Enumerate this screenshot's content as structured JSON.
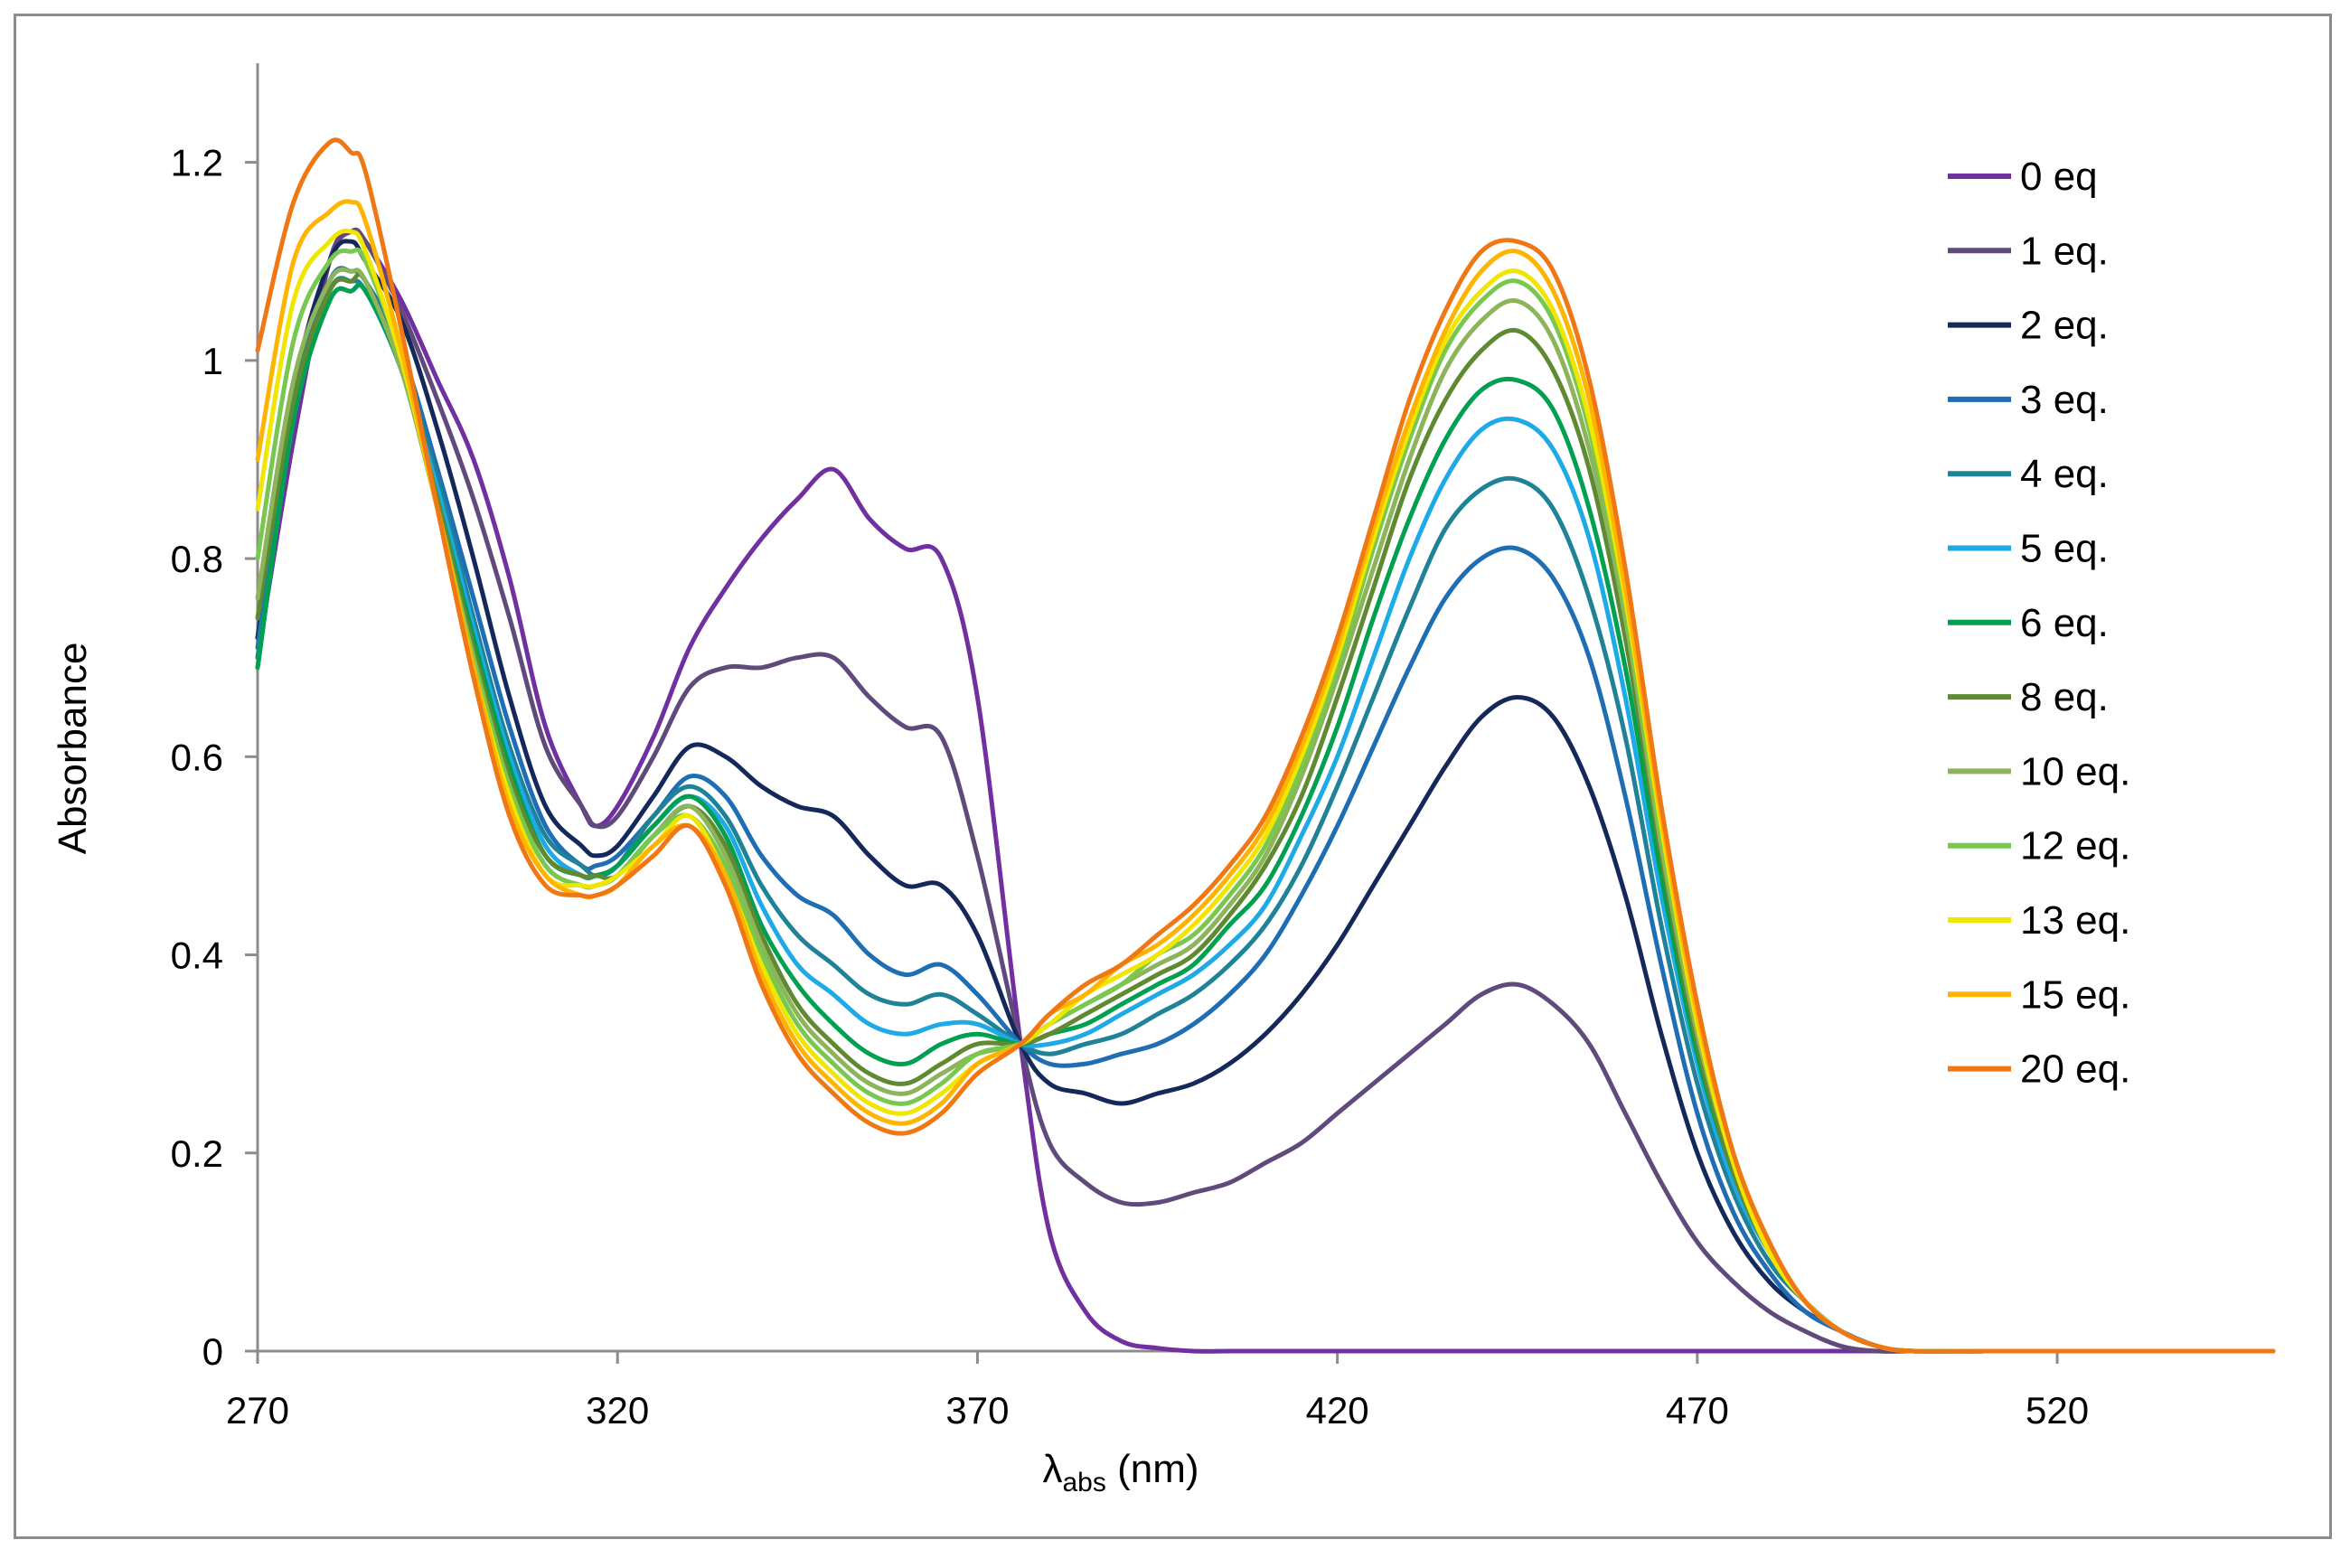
{
  "chart_data": {
    "type": "line",
    "title": "",
    "xlabel": "λabs (nm)",
    "xlabel_main": "λ",
    "xlabel_sub": "abs",
    "xlabel_unit": " (nm)",
    "ylabel": "Absorbance",
    "xlim": [
      270,
      550
    ],
    "ylim": [
      0,
      1.3
    ],
    "xticks": [
      270,
      320,
      370,
      420,
      470,
      520
    ],
    "xtick_labels": [
      "270",
      "320",
      "370",
      "420",
      "470",
      "520"
    ],
    "yticks": [
      0,
      0.2,
      0.4,
      0.6,
      0.8,
      1,
      1.2
    ],
    "ytick_labels": [
      "0",
      "0.2",
      "0.4",
      "0.6",
      "0.8",
      "1",
      "1.2"
    ],
    "grid": false,
    "legend_position": "top-right",
    "x": [
      270,
      275,
      280,
      283,
      285,
      290,
      295,
      300,
      305,
      310,
      315,
      317,
      320,
      325,
      330,
      335,
      340,
      345,
      350,
      355,
      360,
      365,
      370,
      376,
      380,
      385,
      390,
      395,
      400,
      405,
      410,
      415,
      420,
      425,
      430,
      435,
      440,
      445,
      450,
      455,
      460,
      465,
      470,
      475,
      480,
      485,
      490,
      495,
      500,
      510,
      520,
      550
    ],
    "series": [
      {
        "name": "0 eq",
        "color": "#7030a0",
        "values": [
          0.7,
          0.92,
          1.1,
          1.13,
          1.12,
          1.06,
          0.98,
          0.9,
          0.78,
          0.63,
          0.55,
          0.53,
          0.55,
          0.62,
          0.71,
          0.77,
          0.82,
          0.86,
          0.89,
          0.84,
          0.81,
          0.8,
          0.66,
          0.31,
          0.12,
          0.04,
          0.01,
          0.003,
          0,
          0,
          0,
          0,
          0,
          0,
          0,
          0,
          0,
          0,
          0,
          0,
          0,
          0,
          0,
          0,
          0,
          0,
          0,
          0,
          0,
          0,
          0,
          0
        ]
      },
      {
        "name": "1 eq.",
        "color": "#604a7b",
        "values": [
          0.72,
          0.95,
          1.1,
          1.13,
          1.12,
          1.05,
          0.96,
          0.86,
          0.74,
          0.61,
          0.55,
          0.53,
          0.54,
          0.6,
          0.67,
          0.69,
          0.69,
          0.7,
          0.7,
          0.66,
          0.63,
          0.62,
          0.5,
          0.31,
          0.21,
          0.17,
          0.15,
          0.15,
          0.16,
          0.17,
          0.19,
          0.21,
          0.24,
          0.27,
          0.3,
          0.33,
          0.36,
          0.37,
          0.35,
          0.31,
          0.24,
          0.17,
          0.11,
          0.07,
          0.04,
          0.02,
          0.005,
          0,
          0,
          0,
          0,
          0
        ]
      },
      {
        "name": "2 eq.",
        "color": "#14285a",
        "values": [
          0.72,
          0.97,
          1.1,
          1.12,
          1.1,
          1.04,
          0.93,
          0.8,
          0.66,
          0.55,
          0.51,
          0.5,
          0.51,
          0.56,
          0.61,
          0.6,
          0.57,
          0.55,
          0.54,
          0.5,
          0.47,
          0.47,
          0.42,
          0.31,
          0.27,
          0.26,
          0.25,
          0.26,
          0.27,
          0.29,
          0.32,
          0.36,
          0.41,
          0.47,
          0.53,
          0.59,
          0.64,
          0.66,
          0.64,
          0.57,
          0.46,
          0.32,
          0.2,
          0.12,
          0.07,
          0.04,
          0.02,
          0.005,
          0,
          0,
          0,
          0
        ]
      },
      {
        "name": "3 eq.",
        "color": "#1f6eb4",
        "values": [
          0.71,
          0.96,
          1.08,
          1.09,
          1.08,
          1.01,
          0.89,
          0.76,
          0.63,
          0.53,
          0.49,
          0.49,
          0.5,
          0.54,
          0.58,
          0.56,
          0.5,
          0.46,
          0.44,
          0.4,
          0.38,
          0.39,
          0.36,
          0.31,
          0.29,
          0.29,
          0.3,
          0.31,
          0.33,
          0.36,
          0.4,
          0.46,
          0.53,
          0.61,
          0.69,
          0.76,
          0.8,
          0.81,
          0.78,
          0.7,
          0.56,
          0.39,
          0.24,
          0.14,
          0.08,
          0.04,
          0.02,
          0.005,
          0,
          0,
          0,
          0
        ]
      },
      {
        "name": "4 eq.",
        "color": "#1f8296",
        "values": [
          0.7,
          0.95,
          1.07,
          1.08,
          1.07,
          1.0,
          0.88,
          0.74,
          0.61,
          0.52,
          0.49,
          0.48,
          0.49,
          0.54,
          0.57,
          0.54,
          0.47,
          0.42,
          0.39,
          0.36,
          0.35,
          0.36,
          0.34,
          0.31,
          0.3,
          0.31,
          0.32,
          0.34,
          0.36,
          0.39,
          0.43,
          0.49,
          0.57,
          0.66,
          0.75,
          0.83,
          0.87,
          0.88,
          0.85,
          0.76,
          0.62,
          0.43,
          0.27,
          0.16,
          0.09,
          0.05,
          0.02,
          0.005,
          0,
          0,
          0,
          0
        ]
      },
      {
        "name": "5 eq.",
        "color": "#1eaae6",
        "values": [
          0.69,
          0.94,
          1.06,
          1.07,
          1.07,
          0.99,
          0.87,
          0.73,
          0.6,
          0.51,
          0.48,
          0.48,
          0.49,
          0.53,
          0.56,
          0.53,
          0.45,
          0.39,
          0.36,
          0.33,
          0.32,
          0.33,
          0.33,
          0.31,
          0.31,
          0.32,
          0.34,
          0.36,
          0.38,
          0.41,
          0.45,
          0.52,
          0.6,
          0.7,
          0.8,
          0.88,
          0.93,
          0.94,
          0.91,
          0.82,
          0.66,
          0.46,
          0.29,
          0.17,
          0.1,
          0.05,
          0.02,
          0.005,
          0,
          0,
          0,
          0
        ]
      },
      {
        "name": "6 eq.",
        "color": "#00a050",
        "values": [
          0.69,
          0.94,
          1.06,
          1.07,
          1.07,
          0.99,
          0.86,
          0.72,
          0.59,
          0.5,
          0.48,
          0.48,
          0.49,
          0.53,
          0.56,
          0.52,
          0.43,
          0.37,
          0.33,
          0.3,
          0.29,
          0.31,
          0.32,
          0.31,
          0.32,
          0.33,
          0.35,
          0.37,
          0.39,
          0.43,
          0.47,
          0.54,
          0.63,
          0.74,
          0.84,
          0.92,
          0.97,
          0.98,
          0.95,
          0.85,
          0.69,
          0.48,
          0.3,
          0.18,
          0.1,
          0.05,
          0.02,
          0.005,
          0,
          0,
          0,
          0
        ]
      },
      {
        "name": "8 eq.",
        "color": "#5f8a32",
        "values": [
          0.74,
          0.96,
          1.07,
          1.08,
          1.08,
          0.99,
          0.86,
          0.71,
          0.58,
          0.5,
          0.48,
          0.48,
          0.48,
          0.52,
          0.55,
          0.51,
          0.42,
          0.35,
          0.31,
          0.28,
          0.27,
          0.29,
          0.31,
          0.31,
          0.32,
          0.34,
          0.36,
          0.38,
          0.4,
          0.44,
          0.49,
          0.56,
          0.66,
          0.77,
          0.88,
          0.96,
          1.01,
          1.03,
          0.99,
          0.89,
          0.72,
          0.5,
          0.31,
          0.18,
          0.1,
          0.05,
          0.02,
          0.005,
          0,
          0,
          0,
          0
        ]
      },
      {
        "name": "10 eq.",
        "color": "#8cb45a",
        "values": [
          0.76,
          0.98,
          1.08,
          1.09,
          1.08,
          0.99,
          0.85,
          0.7,
          0.57,
          0.49,
          0.47,
          0.47,
          0.48,
          0.52,
          0.55,
          0.5,
          0.41,
          0.34,
          0.3,
          0.27,
          0.26,
          0.28,
          0.3,
          0.31,
          0.33,
          0.35,
          0.37,
          0.39,
          0.41,
          0.45,
          0.5,
          0.58,
          0.68,
          0.79,
          0.9,
          0.99,
          1.04,
          1.06,
          1.02,
          0.91,
          0.74,
          0.51,
          0.32,
          0.19,
          0.1,
          0.05,
          0.02,
          0.005,
          0,
          0,
          0,
          0
        ]
      },
      {
        "name": "12 eq.",
        "color": "#78c850",
        "values": [
          0.8,
          1.02,
          1.1,
          1.11,
          1.1,
          1.0,
          0.85,
          0.7,
          0.57,
          0.49,
          0.47,
          0.47,
          0.48,
          0.52,
          0.54,
          0.49,
          0.4,
          0.33,
          0.29,
          0.26,
          0.25,
          0.27,
          0.3,
          0.31,
          0.33,
          0.35,
          0.37,
          0.4,
          0.42,
          0.46,
          0.51,
          0.59,
          0.69,
          0.81,
          0.92,
          1.01,
          1.06,
          1.08,
          1.04,
          0.93,
          0.75,
          0.52,
          0.33,
          0.19,
          0.1,
          0.05,
          0.02,
          0.005,
          0,
          0,
          0,
          0
        ]
      },
      {
        "name": "13 eq.",
        "color": "#f0e600",
        "values": [
          0.85,
          1.06,
          1.12,
          1.13,
          1.11,
          1.0,
          0.85,
          0.69,
          0.56,
          0.48,
          0.47,
          0.47,
          0.48,
          0.51,
          0.54,
          0.48,
          0.39,
          0.32,
          0.28,
          0.25,
          0.24,
          0.26,
          0.29,
          0.31,
          0.33,
          0.36,
          0.38,
          0.4,
          0.43,
          0.47,
          0.52,
          0.6,
          0.7,
          0.82,
          0.93,
          1.02,
          1.07,
          1.09,
          1.05,
          0.94,
          0.76,
          0.53,
          0.33,
          0.19,
          0.1,
          0.05,
          0.02,
          0.005,
          0,
          0,
          0,
          0
        ]
      },
      {
        "name": "15 eq.",
        "color": "#ffb400",
        "values": [
          0.9,
          1.1,
          1.15,
          1.16,
          1.14,
          1.01,
          0.85,
          0.69,
          0.55,
          0.48,
          0.46,
          0.46,
          0.47,
          0.51,
          0.53,
          0.48,
          0.38,
          0.31,
          0.27,
          0.24,
          0.23,
          0.25,
          0.29,
          0.31,
          0.34,
          0.36,
          0.39,
          0.41,
          0.44,
          0.48,
          0.53,
          0.61,
          0.71,
          0.83,
          0.94,
          1.03,
          1.09,
          1.11,
          1.07,
          0.96,
          0.77,
          0.54,
          0.34,
          0.2,
          0.11,
          0.05,
          0.02,
          0.005,
          0,
          0,
          0,
          0
        ]
      },
      {
        "name": "20 eq.",
        "color": "#f07814",
        "values": [
          1.01,
          1.16,
          1.22,
          1.21,
          1.19,
          1.03,
          0.85,
          0.68,
          0.54,
          0.47,
          0.46,
          0.46,
          0.47,
          0.5,
          0.53,
          0.47,
          0.37,
          0.3,
          0.26,
          0.23,
          0.22,
          0.24,
          0.28,
          0.31,
          0.34,
          0.37,
          0.39,
          0.42,
          0.45,
          0.49,
          0.54,
          0.62,
          0.72,
          0.84,
          0.96,
          1.05,
          1.11,
          1.12,
          1.09,
          0.98,
          0.79,
          0.55,
          0.35,
          0.2,
          0.11,
          0.05,
          0.02,
          0.005,
          0,
          0,
          0,
          0
        ]
      }
    ]
  }
}
